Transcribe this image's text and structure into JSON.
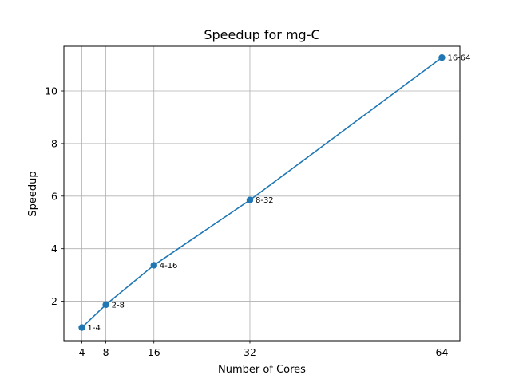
{
  "chart_data": {
    "type": "line",
    "title": "Speedup for mg-C",
    "xlabel": "Number of Cores",
    "ylabel": "Speedup",
    "x": [
      4,
      8,
      16,
      32,
      64
    ],
    "xticks": [
      "4",
      "8",
      "16",
      "32",
      "64"
    ],
    "yticks": [
      "2",
      "4",
      "6",
      "8",
      "10"
    ],
    "xlim": [
      1,
      67
    ],
    "ylim": [
      0.5,
      11.7
    ],
    "grid": true,
    "series": [
      {
        "values": [
          1.0,
          1.87,
          3.37,
          5.85,
          11.27
        ],
        "point_labels": [
          "1-4",
          "2-8",
          "4-16",
          "8-32",
          "16-64"
        ],
        "color": "#1f77b4",
        "marker": "circle"
      }
    ]
  }
}
